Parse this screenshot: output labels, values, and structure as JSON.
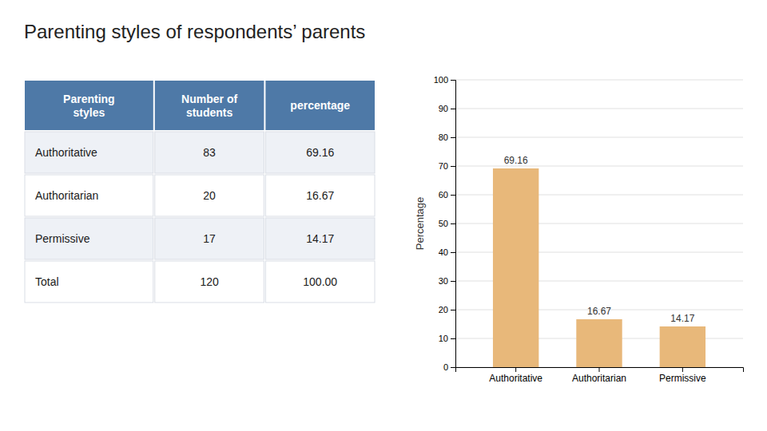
{
  "chart_data": [
    {
      "type": "table",
      "headers": [
        "Parenting\nstyles",
        "Number of\nstudents",
        "percentage"
      ],
      "rows": [
        [
          "Authoritative",
          "83",
          "69.16"
        ],
        [
          "Authoritarian",
          "20",
          "16.67"
        ],
        [
          "Permissive",
          "17",
          "14.17"
        ],
        [
          "Total",
          "120",
          "100.00"
        ]
      ]
    },
    {
      "type": "bar",
      "title": "Parenting styles of respondents’ parents",
      "categories": [
        "Authoritative",
        "Authoritarian",
        "Permissive"
      ],
      "values": [
        69.16,
        16.67,
        14.17
      ],
      "color": "#e8b87a",
      "ylabel": "Percentage",
      "ylim": [
        0,
        100
      ],
      "yticks": [
        0,
        10,
        20,
        30,
        40,
        50,
        60,
        70,
        80,
        90,
        100
      ],
      "grid": true,
      "data_labels": true
    }
  ]
}
